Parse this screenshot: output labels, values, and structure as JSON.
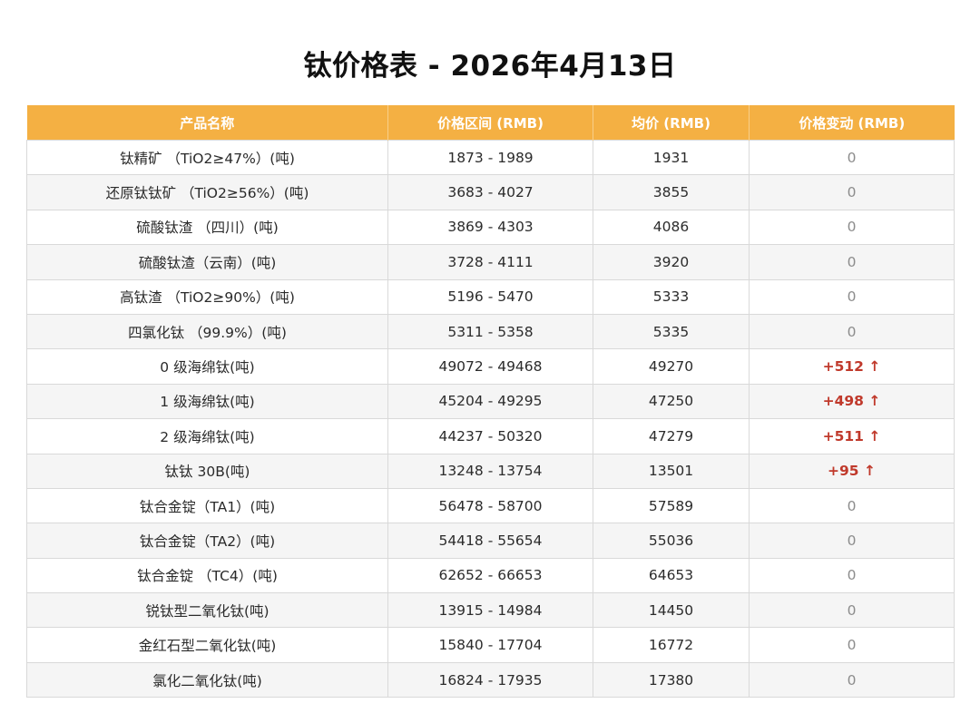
{
  "title": "钛价格表 - 2026年4月13日",
  "table": {
    "headers": [
      "产品名称",
      "价格区间 (RMB)",
      "均价 (RMB)",
      "价格变动 (RMB)"
    ],
    "rows": [
      {
        "name": "钛精矿 （TiO2≥47%）(吨)",
        "range": "1873 - 1989",
        "avg": "1931",
        "change": "0",
        "trend": "flat"
      },
      {
        "name": "还原钛钛矿 （TiO2≥56%）(吨)",
        "range": "3683 - 4027",
        "avg": "3855",
        "change": "0",
        "trend": "flat"
      },
      {
        "name": "硫酸钛渣 （四川）(吨)",
        "range": "3869 - 4303",
        "avg": "4086",
        "change": "0",
        "trend": "flat"
      },
      {
        "name": "硫酸钛渣（云南）(吨)",
        "range": "3728 - 4111",
        "avg": "3920",
        "change": "0",
        "trend": "flat"
      },
      {
        "name": "高钛渣 （TiO2≥90%）(吨)",
        "range": "5196 - 5470",
        "avg": "5333",
        "change": "0",
        "trend": "flat"
      },
      {
        "name": "四氯化钛 （99.9%）(吨)",
        "range": "5311 - 5358",
        "avg": "5335",
        "change": "0",
        "trend": "flat"
      },
      {
        "name": "0 级海绵钛(吨)",
        "range": "49072 - 49468",
        "avg": "49270",
        "change": "+512 ↑",
        "trend": "up"
      },
      {
        "name": "1 级海绵钛(吨)",
        "range": "45204 - 49295",
        "avg": "47250",
        "change": "+498 ↑",
        "trend": "up"
      },
      {
        "name": "2 级海绵钛(吨)",
        "range": "44237 - 50320",
        "avg": "47279",
        "change": "+511 ↑",
        "trend": "up"
      },
      {
        "name": "钛钛 30B(吨)",
        "range": "13248 - 13754",
        "avg": "13501",
        "change": "+95 ↑",
        "trend": "up"
      },
      {
        "name": "钛合金锭（TA1）(吨)",
        "range": "56478 - 58700",
        "avg": "57589",
        "change": "0",
        "trend": "flat"
      },
      {
        "name": "钛合金锭（TA2）(吨)",
        "range": "54418 - 55654",
        "avg": "55036",
        "change": "0",
        "trend": "flat"
      },
      {
        "name": "钛合金锭 （TC4）(吨)",
        "range": "62652 - 66653",
        "avg": "64653",
        "change": "0",
        "trend": "flat"
      },
      {
        "name": "锐钛型二氧化钛(吨)",
        "range": "13915 - 14984",
        "avg": "14450",
        "change": "0",
        "trend": "flat"
      },
      {
        "name": "金红石型二氧化钛(吨)",
        "range": "15840 - 17704",
        "avg": "16772",
        "change": "0",
        "trend": "flat"
      },
      {
        "name": "氯化二氧化钛(吨)",
        "range": "16824 - 17935",
        "avg": "17380",
        "change": "0",
        "trend": "flat"
      }
    ]
  }
}
